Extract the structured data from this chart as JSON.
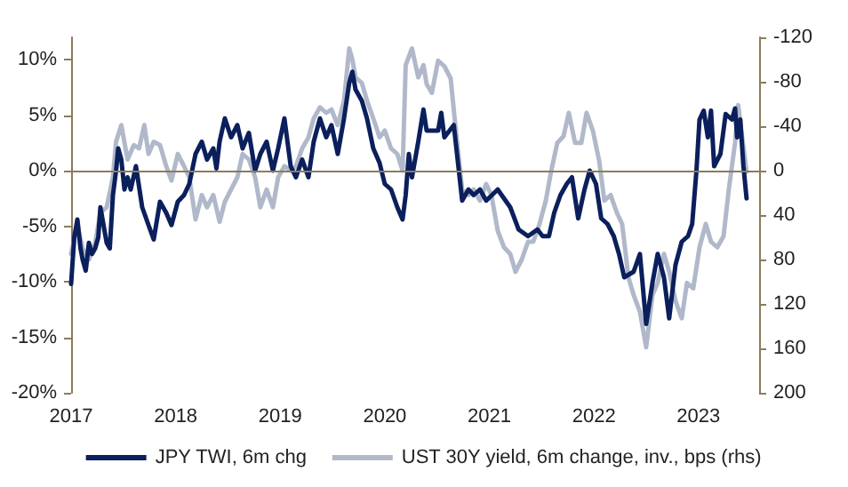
{
  "chart_data": {
    "type": "line",
    "xlim": [
      2017,
      2023.58
    ],
    "xticks": [
      2017,
      2018,
      2019,
      2020,
      2021,
      2022,
      2023
    ],
    "ylim": [
      -20,
      12
    ],
    "yticks": [
      {
        "value": -20,
        "label": "-20%"
      },
      {
        "value": -15,
        "label": "-15%"
      },
      {
        "value": -10,
        "label": "-10%"
      },
      {
        "value": -5,
        "label": "-5%"
      },
      {
        "value": 0,
        "label": "0%"
      },
      {
        "value": 5,
        "label": "5%"
      },
      {
        "value": 10,
        "label": "10%"
      }
    ],
    "y2lim": [
      200,
      -120
    ],
    "y2ticks": [
      200,
      160,
      120,
      80,
      40,
      0,
      -40,
      -80,
      -120
    ],
    "grid": false,
    "legend": "bottom",
    "marker": "none",
    "line_style": "solid",
    "ref_lines": [
      {
        "axis": "y",
        "value": 0,
        "label": null,
        "color": "#8c7b5c"
      }
    ],
    "series": [
      {
        "name": "JPY TWI, 6m chg",
        "color": "#0b1f5c",
        "x": [
          2017.0,
          2017.03,
          2017.06,
          2017.09,
          2017.11,
          2017.14,
          2017.17,
          2017.2,
          2017.23,
          2017.26,
          2017.28,
          2017.31,
          2017.34,
          2017.37,
          2017.4,
          2017.43,
          2017.45,
          2017.48,
          2017.51,
          2017.54,
          2017.57,
          2017.62,
          2017.68,
          2017.74,
          2017.79,
          2017.85,
          2017.91,
          2017.96,
          2018.02,
          2018.08,
          2018.13,
          2018.19,
          2018.25,
          2018.3,
          2018.36,
          2018.39,
          2018.42,
          2018.47,
          2018.53,
          2018.59,
          2018.64,
          2018.7,
          2018.76,
          2018.81,
          2018.87,
          2018.93,
          2018.98,
          2019.04,
          2019.1,
          2019.15,
          2019.21,
          2019.27,
          2019.32,
          2019.38,
          2019.44,
          2019.49,
          2019.55,
          2019.61,
          2019.66,
          2019.69,
          2019.72,
          2019.78,
          2019.83,
          2019.89,
          2019.95,
          2020.0,
          2020.06,
          2020.12,
          2020.17,
          2020.2,
          2020.23,
          2020.26,
          2020.32,
          2020.37,
          2020.4,
          2020.51,
          2020.54,
          2020.57,
          2020.66,
          2020.74,
          2020.8,
          2020.85,
          2020.91,
          2020.97,
          2021.08,
          2021.2,
          2021.28,
          2021.37,
          2021.46,
          2021.51,
          2021.57,
          2021.62,
          2021.68,
          2021.74,
          2021.79,
          2021.85,
          2021.91,
          2021.96,
          2022.02,
          2022.07,
          2022.13,
          2022.19,
          2022.24,
          2022.29,
          2022.38,
          2022.44,
          2022.5,
          2022.56,
          2022.61,
          2022.67,
          2022.72,
          2022.78,
          2022.84,
          2022.9,
          2022.94,
          2022.98,
          2023.01,
          2023.05,
          2023.09,
          2023.12,
          2023.15,
          2023.21,
          2023.26,
          2023.32,
          2023.35,
          2023.37,
          2023.4,
          2023.43,
          2023.46
        ],
        "values": [
          -10.2,
          -6,
          -4.4,
          -7,
          -8,
          -9,
          -6.5,
          -7.5,
          -7,
          -6,
          -3.3,
          -4.9,
          -6.5,
          -7,
          -2.2,
          0,
          2,
          1,
          -1.7,
          -0.6,
          -1.7,
          0.4,
          -3.3,
          -4.9,
          -6.2,
          -2.8,
          -3.8,
          -4.9,
          -2.8,
          -2.2,
          -1.2,
          1.5,
          2.6,
          1,
          2,
          0.2,
          2.6,
          4.7,
          3,
          4.1,
          2,
          3.4,
          0,
          1.5,
          2.6,
          0,
          2,
          4.7,
          0.4,
          -0.6,
          1,
          -0.6,
          2.6,
          4.7,
          3,
          4.1,
          1.5,
          4.7,
          7.9,
          8.9,
          7.3,
          6.3,
          4.7,
          2,
          0.7,
          -1.2,
          -1.7,
          -3.3,
          -4.4,
          -2.2,
          1.5,
          -0.6,
          2.6,
          5.5,
          3.6,
          3.6,
          5.2,
          3,
          4.1,
          -2.7,
          -1.7,
          -2.2,
          -1.7,
          -2.7,
          -1.7,
          -3.3,
          -5.3,
          -5.9,
          -5.3,
          -5.9,
          -5.9,
          -3.8,
          -2.2,
          -1.2,
          -0.6,
          -4.3,
          -1.7,
          0,
          -1.2,
          -4.3,
          -4.8,
          -5.9,
          -7.5,
          -9.6,
          -9.1,
          -7.5,
          -13.8,
          -10.1,
          -7.5,
          -9.6,
          -13.3,
          -8.5,
          -6.4,
          -5.9,
          -4.8,
          -0.1,
          4.6,
          5.4,
          3,
          5.4,
          0.4,
          1.5,
          5.1,
          4.6,
          5.6,
          3,
          4.6,
          0.4,
          -2.5
        ]
      },
      {
        "name": "UST 30Y yield, 6m change, inv., bps (rhs)",
        "color": "#b0b8ca",
        "axis": "y2",
        "x": [
          2017.0,
          2017.06,
          2017.11,
          2017.17,
          2017.23,
          2017.28,
          2017.34,
          2017.4,
          2017.43,
          2017.48,
          2017.54,
          2017.6,
          2017.65,
          2017.7,
          2017.74,
          2017.79,
          2017.85,
          2017.91,
          2017.96,
          2018.02,
          2018.08,
          2018.13,
          2018.19,
          2018.25,
          2018.3,
          2018.36,
          2018.42,
          2018.47,
          2018.53,
          2018.59,
          2018.64,
          2018.7,
          2018.76,
          2018.81,
          2018.87,
          2018.93,
          2018.98,
          2019.04,
          2019.1,
          2019.15,
          2019.21,
          2019.27,
          2019.32,
          2019.38,
          2019.44,
          2019.49,
          2019.55,
          2019.61,
          2019.66,
          2019.69,
          2019.72,
          2019.78,
          2019.83,
          2019.89,
          2019.95,
          2020.0,
          2020.06,
          2020.12,
          2020.17,
          2020.2,
          2020.26,
          2020.32,
          2020.37,
          2020.4,
          2020.45,
          2020.51,
          2020.57,
          2020.63,
          2020.68,
          2020.74,
          2020.8,
          2020.85,
          2020.91,
          2020.97,
          2021.02,
          2021.08,
          2021.14,
          2021.2,
          2021.25,
          2021.31,
          2021.37,
          2021.42,
          2021.48,
          2021.54,
          2021.59,
          2021.65,
          2021.71,
          2021.76,
          2021.82,
          2021.88,
          2021.93,
          2021.99,
          2022.05,
          2022.1,
          2022.16,
          2022.22,
          2022.27,
          2022.33,
          2022.38,
          2022.44,
          2022.5,
          2022.56,
          2022.61,
          2022.67,
          2022.72,
          2022.78,
          2022.84,
          2022.89,
          2022.95,
          2023.01,
          2023.07,
          2023.12,
          2023.18,
          2023.24,
          2023.29,
          2023.35,
          2023.38,
          2023.41,
          2023.46
        ],
        "values": [
          75,
          49,
          70,
          80,
          65,
          38,
          33,
          6,
          -26,
          -41,
          -10,
          -23,
          -20,
          -41,
          -15,
          -26,
          -23,
          -4,
          9,
          -15,
          -4,
          6,
          44,
          22,
          33,
          22,
          46,
          28,
          17,
          6,
          -15,
          -10,
          6,
          33,
          17,
          33,
          6,
          -4,
          0,
          -4,
          -20,
          -30,
          -47,
          -57,
          -52,
          -55,
          -41,
          -63,
          -110,
          -100,
          -84,
          -79,
          -63,
          -47,
          -30,
          -36,
          -20,
          -15,
          0,
          -95,
          -110,
          -84,
          -95,
          -78,
          -70,
          -99,
          -94,
          -83,
          -36,
          17,
          22,
          17,
          27,
          12,
          22,
          54,
          69,
          75,
          91,
          80,
          64,
          64,
          48,
          27,
          1,
          -25,
          -31,
          -52,
          -25,
          -25,
          -52,
          -36,
          -9,
          27,
          22,
          38,
          48,
          96,
          112,
          127,
          159,
          112,
          101,
          75,
          91,
          117,
          133,
          101,
          106,
          69,
          48,
          64,
          69,
          59,
          17,
          -25,
          -59,
          -36,
          1
        ]
      }
    ]
  }
}
